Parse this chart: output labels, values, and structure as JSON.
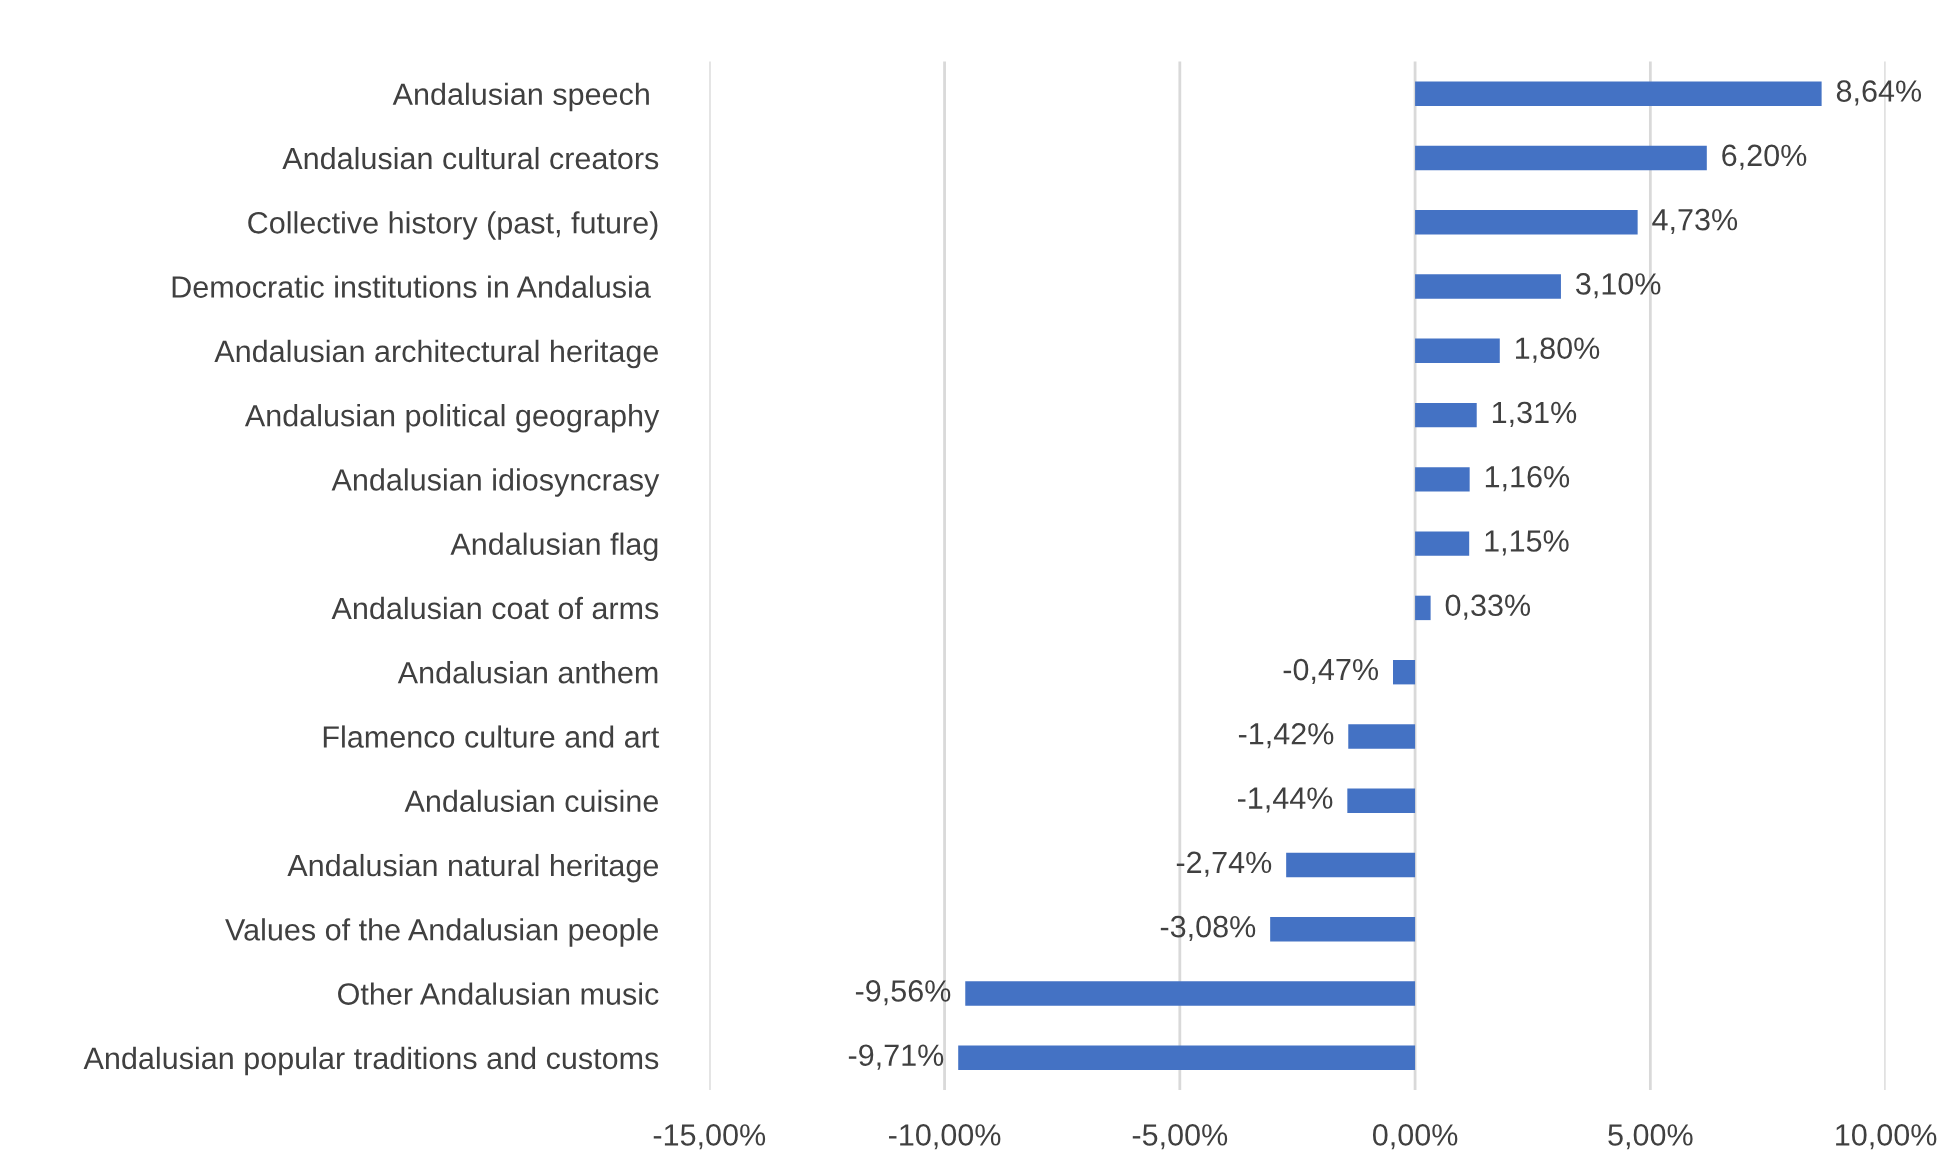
{
  "chart_data": {
    "type": "bar",
    "orientation": "horizontal",
    "categories": [
      "Andalusian speech ",
      "Andalusian cultural creators",
      "Collective history (past, future)",
      "Democratic institutions in Andalusia ",
      "Andalusian architectural heritage",
      "Andalusian political geography",
      "Andalusian idiosyncrasy",
      "Andalusian flag",
      "Andalusian coat of arms",
      "Andalusian anthem",
      "Flamenco culture and art",
      "Andalusian cuisine",
      "Andalusian natural heritage",
      "Values of the Andalusian people",
      "Other Andalusian music",
      "Andalusian popular traditions and customs"
    ],
    "values": [
      8.64,
      6.2,
      4.73,
      3.1,
      1.8,
      1.31,
      1.16,
      1.15,
      0.33,
      -0.47,
      -1.42,
      -1.44,
      -2.74,
      -3.08,
      -9.56,
      -9.71
    ],
    "value_labels": [
      "8,64%",
      "6,20%",
      "4,73%",
      "3,10%",
      "1,80%",
      "1,31%",
      "1,16%",
      "1,15%",
      "0,33%",
      "-0,47%",
      "-1,42%",
      "-1,44%",
      "-2,74%",
      "-3,08%",
      "-9,56%",
      "-9,71%"
    ],
    "color": "#4472c4",
    "xlim": [
      -15,
      10
    ],
    "xticks": [
      {
        "value": -15,
        "label": "-15,00%"
      },
      {
        "value": -10,
        "label": "-10,00%"
      },
      {
        "value": -5,
        "label": "-5,00%"
      },
      {
        "value": 0,
        "label": "0,00%"
      },
      {
        "value": 5,
        "label": "5,00%"
      },
      {
        "value": 10,
        "label": "10,00%"
      }
    ],
    "grid": "x",
    "legend": false
  }
}
